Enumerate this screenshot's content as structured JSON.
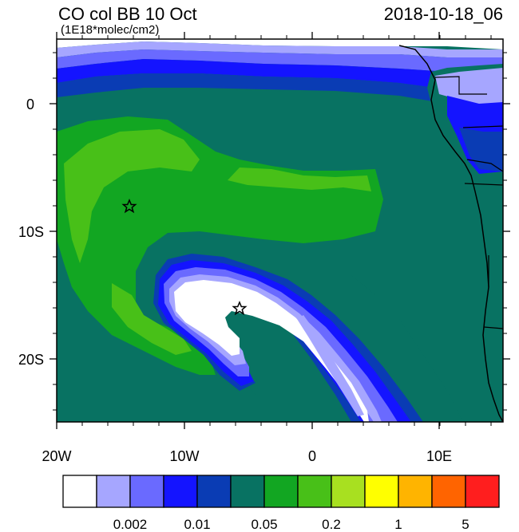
{
  "header": {
    "title": "CO col BB 10 Oct",
    "units": "(1E18*molec/cm2)",
    "timestamp": "2018-10-18_06"
  },
  "map": {
    "lon_range": [
      -20,
      15
    ],
    "lat_range": [
      -25,
      5
    ],
    "x_tick_labels": [
      "20W",
      "10W",
      "0",
      "10E"
    ],
    "y_tick_labels": [
      "0",
      "10S",
      "20S"
    ],
    "markers": [
      {
        "name": "star",
        "lon": -14.4,
        "lat": -8.0
      },
      {
        "name": "star",
        "lon": -5.7,
        "lat": -16.0
      }
    ]
  },
  "colorbar": {
    "colors": [
      "#ffffff",
      "#a6a6ff",
      "#6a6aff",
      "#1414ff",
      "#0a3cb4",
      "#087262",
      "#12a622",
      "#48c018",
      "#a8e020",
      "#ffff00",
      "#ffb400",
      "#ff6400",
      "#ff1e1e"
    ],
    "labels": [
      "0.002",
      "0.01",
      "0.05",
      "0.2",
      "1",
      "5"
    ]
  }
}
